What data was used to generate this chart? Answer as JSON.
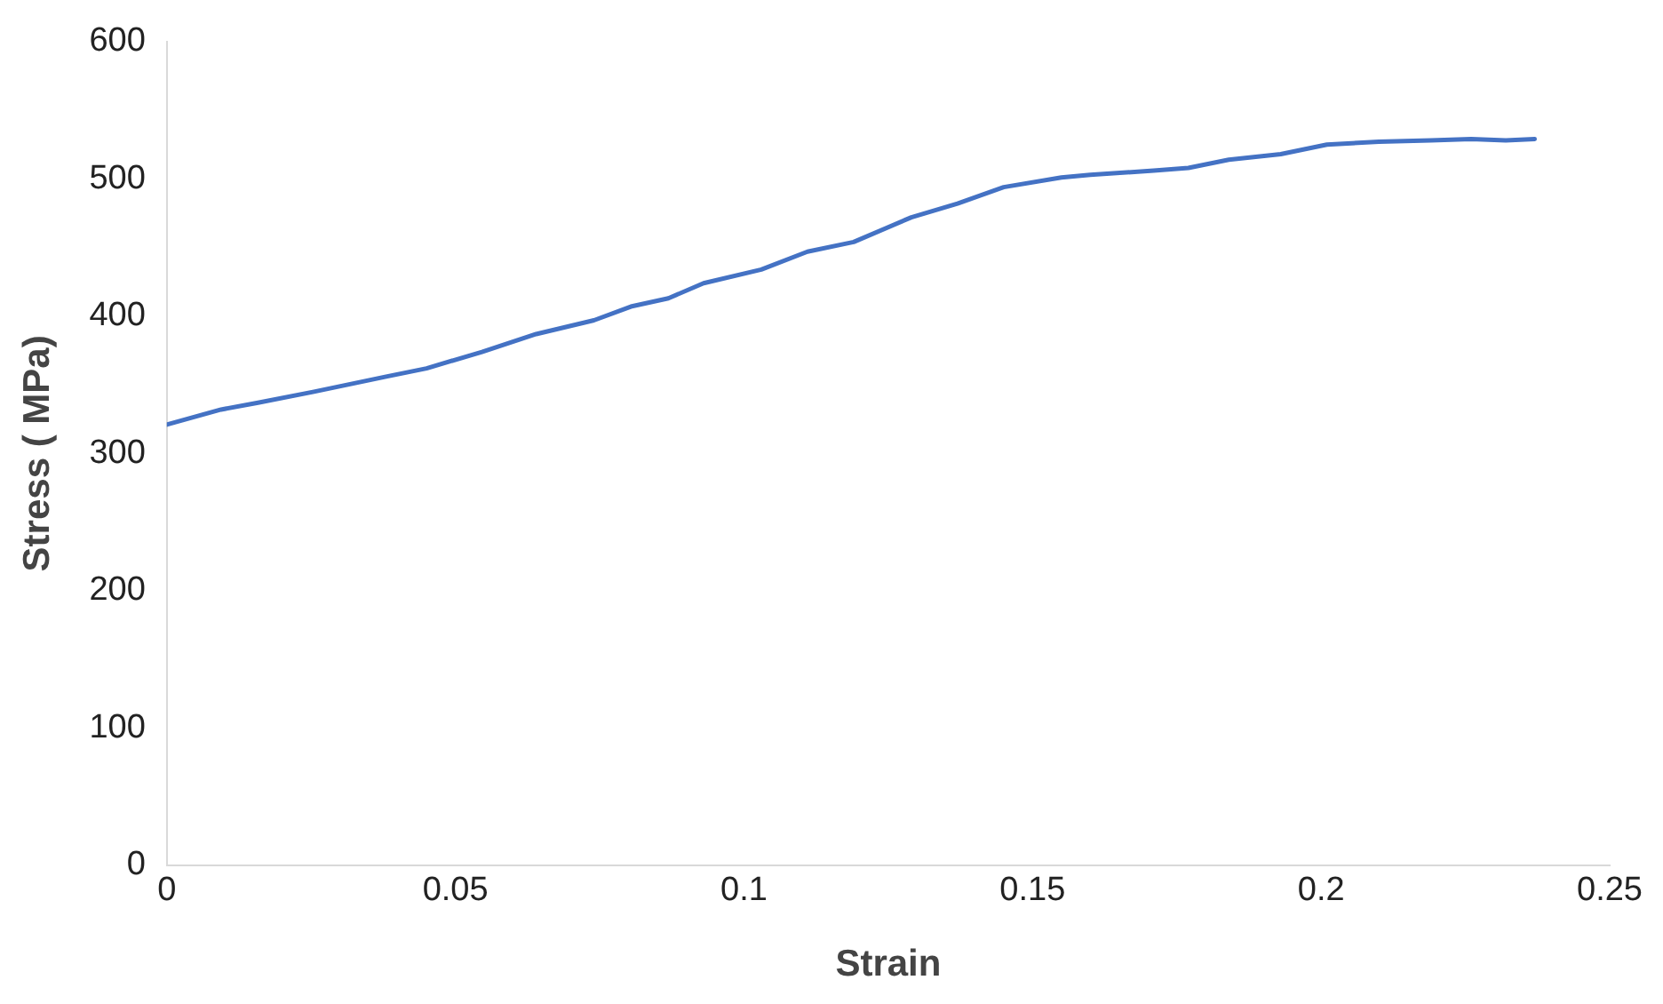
{
  "chart_data": {
    "type": "line",
    "xlabel": "Strain",
    "ylabel": "Stress ( MPa)",
    "x": [
      0,
      0.0094,
      0.0158,
      0.0255,
      0.038,
      0.045,
      0.0546,
      0.064,
      0.074,
      0.0804,
      0.0869,
      0.093,
      0.103,
      0.111,
      0.119,
      0.129,
      0.137,
      0.145,
      0.155,
      0.16,
      0.171,
      0.177,
      0.184,
      0.193,
      0.201,
      0.21,
      0.219,
      0.226,
      0.232,
      0.237
    ],
    "series": [
      {
        "color": "#4472c4",
        "values": [
          321,
          332,
          337,
          345,
          356,
          362,
          374,
          387,
          397,
          407,
          413,
          424,
          434,
          447,
          454,
          472,
          482,
          494,
          501,
          503,
          506,
          508,
          514,
          518,
          525,
          527,
          528,
          529,
          528,
          529
        ]
      }
    ],
    "xlim": [
      0,
      0.25
    ],
    "xticks": [
      0,
      0.05,
      0.1,
      0.15,
      0.2,
      0.25
    ],
    "ylim": [
      0,
      600
    ],
    "yticks": [
      0,
      100,
      200,
      300,
      400,
      500,
      600
    ],
    "grid": false,
    "legend": false,
    "marker": "none",
    "line_style": "solid"
  }
}
